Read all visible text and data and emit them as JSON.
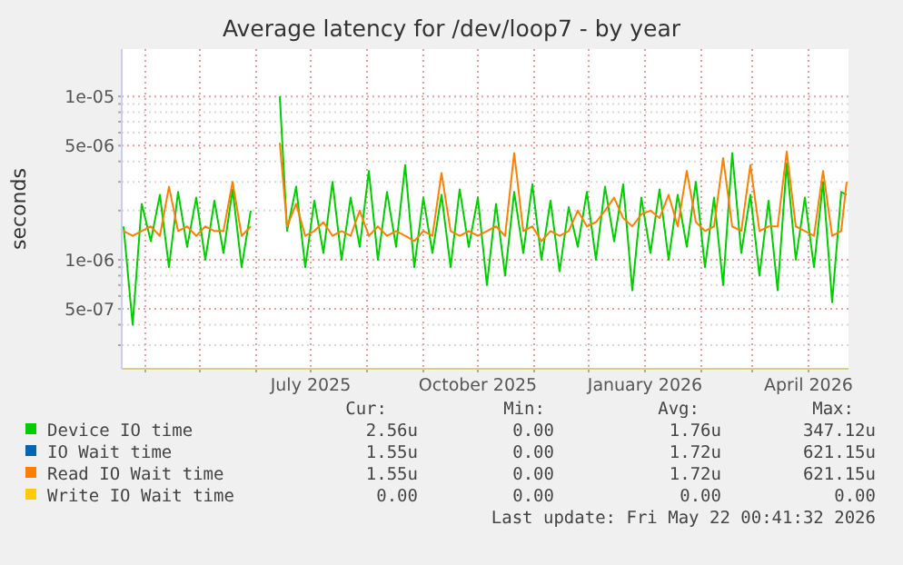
{
  "chart_data": {
    "type": "line",
    "title": "Average latency for /dev/loop7 - by year",
    "ylabel": "seconds",
    "log": "y",
    "grid": true,
    "legend": "bottom",
    "marker": "none",
    "line_style": "solid",
    "ylim": [
      2.15e-07,
      1.95e-05
    ],
    "yticks": [
      {
        "value": 3e-07,
        "label": null
      },
      {
        "value": 4e-07,
        "label": null
      },
      {
        "value": 5e-07,
        "label": "5e-07"
      },
      {
        "value": 6e-07,
        "label": null
      },
      {
        "value": 7e-07,
        "label": null
      },
      {
        "value": 8e-07,
        "label": null
      },
      {
        "value": 9e-07,
        "label": null
      },
      {
        "value": 1e-06,
        "label": "1e-06"
      },
      {
        "value": 2e-06,
        "label": null
      },
      {
        "value": 3e-06,
        "label": null
      },
      {
        "value": 4e-06,
        "label": null
      },
      {
        "value": 5e-06,
        "label": "5e-06"
      },
      {
        "value": 6e-06,
        "label": null
      },
      {
        "value": 7e-06,
        "label": null
      },
      {
        "value": 8e-06,
        "label": null
      },
      {
        "value": 9e-06,
        "label": null
      },
      {
        "value": 1e-05,
        "label": "1e-05"
      }
    ],
    "xlim": [
      "2025-03-19",
      "2026-04-23"
    ],
    "xticks": [
      {
        "value": "2025-04-01",
        "label": null
      },
      {
        "value": "2025-05-01",
        "label": null
      },
      {
        "value": "2025-06-01",
        "label": null
      },
      {
        "value": "2025-07-01",
        "label": "July 2025"
      },
      {
        "value": "2025-08-01",
        "label": null
      },
      {
        "value": "2025-09-01",
        "label": null
      },
      {
        "value": "2025-10-01",
        "label": "October 2025"
      },
      {
        "value": "2025-11-01",
        "label": null
      },
      {
        "value": "2025-12-01",
        "label": null
      },
      {
        "value": "2026-01-01",
        "label": "January 2026"
      },
      {
        "value": "2026-02-01",
        "label": null
      },
      {
        "value": "2026-03-01",
        "label": null
      },
      {
        "value": "2026-04-01",
        "label": "April 2026"
      }
    ],
    "x": [
      "2025-03-20",
      "2025-03-25",
      "2025-03-30",
      "2025-04-04",
      "2025-04-09",
      "2025-04-14",
      "2025-04-19",
      "2025-04-24",
      "2025-04-29",
      "2025-05-04",
      "2025-05-09",
      "2025-05-14",
      "2025-05-19",
      "2025-05-24",
      "2025-05-29",
      "2025-06-03",
      "2025-06-08",
      "2025-06-14",
      "2025-06-18",
      "2025-06-23",
      "2025-06-28",
      "2025-07-03",
      "2025-07-08",
      "2025-07-13",
      "2025-07-18",
      "2025-07-23",
      "2025-07-28",
      "2025-08-02",
      "2025-08-07",
      "2025-08-12",
      "2025-08-17",
      "2025-08-22",
      "2025-08-27",
      "2025-09-01",
      "2025-09-06",
      "2025-09-11",
      "2025-09-16",
      "2025-09-21",
      "2025-09-26",
      "2025-10-01",
      "2025-10-06",
      "2025-10-11",
      "2025-10-16",
      "2025-10-21",
      "2025-10-26",
      "2025-10-31",
      "2025-11-05",
      "2025-11-10",
      "2025-11-15",
      "2025-11-20",
      "2025-11-25",
      "2025-11-30",
      "2025-12-05",
      "2025-12-10",
      "2025-12-15",
      "2025-12-20",
      "2025-12-25",
      "2025-12-30",
      "2026-01-04",
      "2026-01-09",
      "2026-01-14",
      "2026-01-19",
      "2026-01-24",
      "2026-01-29",
      "2026-02-03",
      "2026-02-08",
      "2026-02-13",
      "2026-02-18",
      "2026-02-23",
      "2026-02-28",
      "2026-03-05",
      "2026-03-10",
      "2026-03-15",
      "2026-03-20",
      "2026-03-25",
      "2026-03-30",
      "2026-04-04",
      "2026-04-09",
      "2026-04-14",
      "2026-04-19",
      "2026-04-22"
    ],
    "series": [
      {
        "name": "Device IO time",
        "color": "#00cc00",
        "values": [
          1.6e-06,
          4e-07,
          2.2e-06,
          1.3e-06,
          2.5e-06,
          9e-07,
          2.6e-06,
          1.2e-06,
          2.4e-06,
          1e-06,
          2.3e-06,
          1.1e-06,
          2.7e-06,
          9e-07,
          2e-06,
          null,
          null,
          1e-05,
          1.5e-06,
          2.8e-06,
          9e-07,
          2.3e-06,
          1.1e-06,
          3e-06,
          1e-06,
          2.4e-06,
          1.2e-06,
          3.5e-06,
          1e-06,
          2.6e-06,
          1.2e-06,
          3.8e-06,
          9e-07,
          2.4e-06,
          1.1e-06,
          2.5e-06,
          9e-07,
          2.7e-06,
          1.2e-06,
          2.4e-06,
          7e-07,
          2.2e-06,
          8e-07,
          2.6e-06,
          1.1e-06,
          2.9e-06,
          1e-06,
          2.3e-06,
          8.5e-07,
          2.1e-06,
          1.2e-06,
          2.6e-06,
          1e-06,
          2.8e-06,
          1.3e-06,
          2.9e-06,
          6.5e-07,
          2.4e-06,
          1.1e-06,
          2.7e-06,
          1e-06,
          2.5e-06,
          1.2e-06,
          3e-06,
          9e-07,
          2.4e-06,
          7e-07,
          4.5e-06,
          1.1e-06,
          2.5e-06,
          8e-07,
          2.3e-06,
          6.5e-07,
          3.9e-06,
          1e-06,
          2.4e-06,
          9e-07,
          3e-06,
          5.5e-07,
          2.6e-06,
          2.5e-06
        ]
      },
      {
        "name": "IO Wait time",
        "color": "#0066b3",
        "values": [
          null,
          null,
          null,
          null,
          null,
          null,
          null,
          null,
          null,
          null,
          null,
          null,
          null,
          null,
          null,
          null,
          null,
          null,
          null,
          null,
          null,
          null,
          null,
          null,
          null,
          null,
          null,
          null,
          null,
          null,
          null,
          null,
          null,
          null,
          null,
          null,
          null,
          null,
          null,
          null,
          null,
          null,
          null,
          null,
          null,
          null,
          null,
          null,
          null,
          null,
          null,
          null,
          null,
          null,
          null,
          null,
          null,
          null,
          null,
          null,
          null,
          null,
          null,
          null,
          null,
          null,
          null,
          null,
          null,
          null,
          null,
          null,
          null,
          null,
          null,
          null,
          null,
          null,
          null,
          null,
          null
        ]
      },
      {
        "name": "Read IO Wait time",
        "color": "#ff8000",
        "values": [
          1.5e-06,
          1.4e-06,
          1.5e-06,
          1.6e-06,
          1.4e-06,
          2.8e-06,
          1.5e-06,
          1.6e-06,
          1.4e-06,
          1.6e-06,
          1.5e-06,
          1.5e-06,
          3e-06,
          1.4e-06,
          1.6e-06,
          null,
          null,
          5.2e-06,
          1.6e-06,
          2.2e-06,
          1.4e-06,
          1.5e-06,
          1.7e-06,
          1.4e-06,
          1.5e-06,
          1.4e-06,
          2e-06,
          1.4e-06,
          1.6e-06,
          1.4e-06,
          1.5e-06,
          1.4e-06,
          1.3e-06,
          1.5e-06,
          1.4e-06,
          3.4e-06,
          1.5e-06,
          1.4e-06,
          1.5e-06,
          1.4e-06,
          1.5e-06,
          1.6e-06,
          1.4e-06,
          4.5e-06,
          1.5e-06,
          1.6e-06,
          1.3e-06,
          1.5e-06,
          1.4e-06,
          1.5e-06,
          2e-06,
          1.6e-06,
          1.7e-06,
          2e-06,
          2.4e-06,
          1.8e-06,
          1.6e-06,
          1.9e-06,
          2e-06,
          1.8e-06,
          2.5e-06,
          1.6e-06,
          3.5e-06,
          1.7e-06,
          1.5e-06,
          1.6e-06,
          4.2e-06,
          1.6e-06,
          1.5e-06,
          3.8e-06,
          1.5e-06,
          1.6e-06,
          1.6e-06,
          4.6e-06,
          1.6e-06,
          1.5e-06,
          1.4e-06,
          3.5e-06,
          1.4e-06,
          1.5e-06,
          3e-06
        ]
      },
      {
        "name": "Write IO Wait time",
        "color": "#ffcc00",
        "values": [
          null,
          null,
          null,
          null,
          null,
          null,
          null,
          null,
          null,
          null,
          null,
          null,
          null,
          null,
          null,
          null,
          null,
          null,
          null,
          null,
          null,
          null,
          null,
          null,
          null,
          null,
          null,
          null,
          null,
          null,
          null,
          null,
          null,
          null,
          null,
          null,
          null,
          null,
          null,
          null,
          null,
          null,
          null,
          null,
          null,
          null,
          null,
          null,
          null,
          null,
          null,
          null,
          null,
          null,
          null,
          null,
          null,
          null,
          null,
          null,
          null,
          null,
          null,
          null,
          null,
          null,
          null,
          null,
          null,
          null,
          null,
          null,
          null,
          null,
          null,
          null,
          null,
          null,
          null,
          null,
          null
        ]
      }
    ],
    "annotations": [
      "Cur:",
      "Min:",
      "Avg:",
      "Max:",
      "2.56u",
      "0.00",
      "1.76u",
      "347.12u",
      "1.55u",
      "0.00",
      "1.72u",
      "621.15u",
      "1.55u",
      "0.00",
      "1.72u",
      "621.15u",
      "0.00",
      "0.00",
      "0.00",
      "0.00",
      "Last update: Fri May 22 00:41:32 2026"
    ]
  }
}
